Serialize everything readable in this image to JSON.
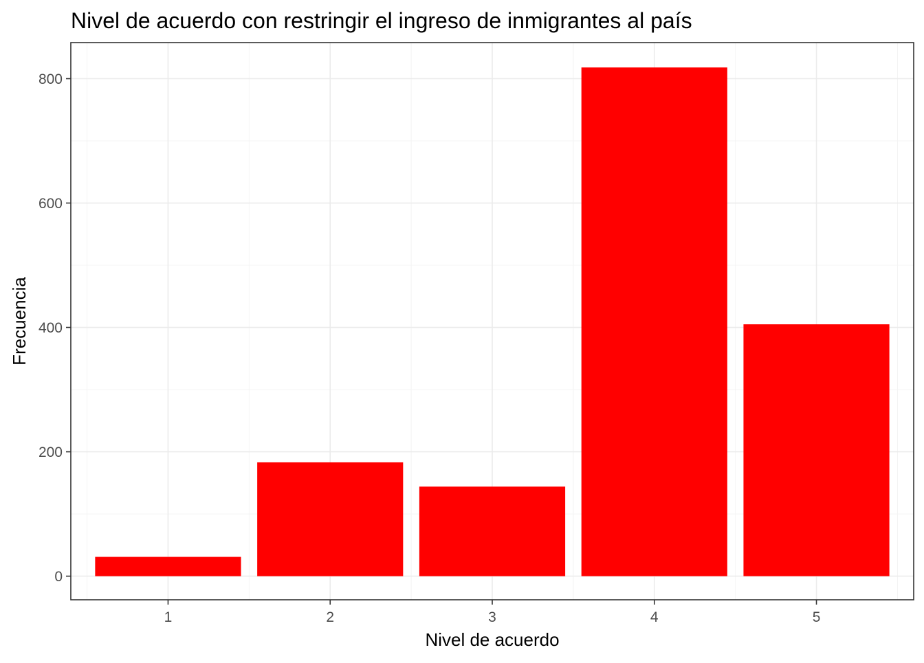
{
  "chart_data": {
    "type": "bar",
    "title": "Nivel de acuerdo con restringir el ingreso de inmigrantes al país",
    "xlabel": "Nivel de acuerdo",
    "ylabel": "Frecuencia",
    "categories": [
      "1",
      "2",
      "3",
      "4",
      "5"
    ],
    "values": [
      31,
      183,
      144,
      818,
      405
    ],
    "ylim": [
      -38,
      858
    ],
    "yticks": [
      0,
      200,
      400,
      600,
      800
    ],
    "grid": true,
    "bar_color": "#FF0000",
    "legend": "none"
  }
}
